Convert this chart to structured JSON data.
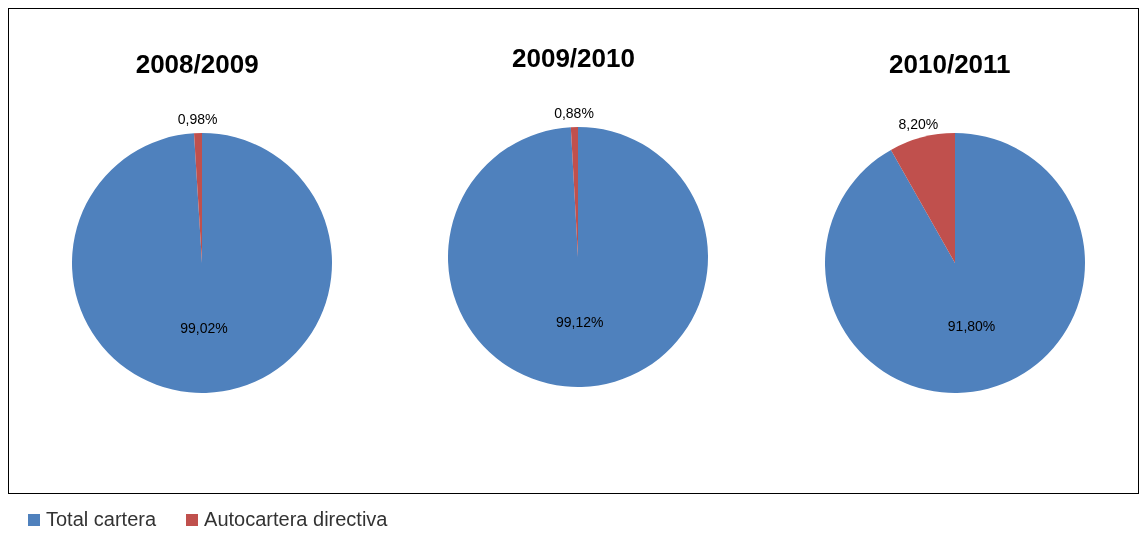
{
  "chart_data": [
    {
      "type": "pie",
      "title": "2008/2009",
      "categories": [
        "Total cartera",
        "Autocartera directiva"
      ],
      "values": [
        99.02,
        0.98
      ],
      "colors": [
        "#4f81bd",
        "#c0504d"
      ],
      "value_labels": [
        "99,02%",
        "0,98%"
      ],
      "legend": "bottom"
    },
    {
      "type": "pie",
      "title": "2009/2010",
      "categories": [
        null,
        null
      ],
      "values": [
        99.12,
        0.88
      ],
      "colors": [
        "#4f81bd",
        "#c0504d"
      ],
      "value_labels": [
        "99,12%",
        "0,88%"
      ]
    },
    {
      "type": "pie",
      "title": "2010/2011",
      "categories": [
        null,
        null
      ],
      "values": [
        91.8,
        8.2
      ],
      "colors": [
        "#4f81bd",
        "#c0504d"
      ],
      "value_labels": [
        "91,80%",
        "8,20%"
      ]
    }
  ]
}
